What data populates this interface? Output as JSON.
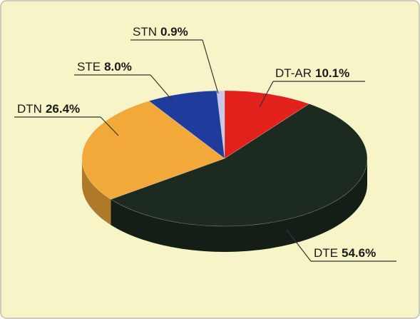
{
  "chart_data": {
    "type": "pie",
    "categories": [
      "STN",
      "DT-AR",
      "DTE",
      "DTN",
      "STE"
    ],
    "values": [
      0.9,
      10.1,
      54.6,
      26.4,
      8.0
    ],
    "value_labels": [
      "0.9%",
      "10.1%",
      "54.6%",
      "26.4%",
      "8.0%"
    ],
    "colors": [
      "#c9c7e6",
      "#e2201c",
      "#1d2a1f",
      "#f3a83a",
      "#1f3c9c"
    ]
  }
}
